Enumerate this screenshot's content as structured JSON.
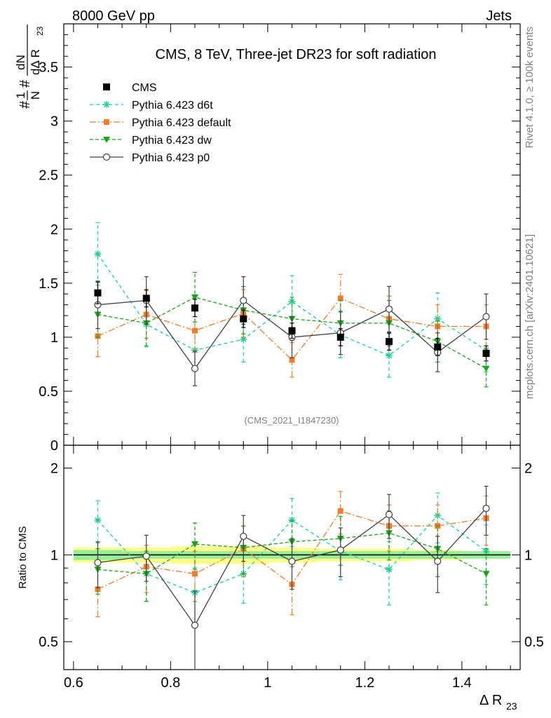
{
  "header": {
    "energy_label": "8000 GeV pp",
    "process_label": "Jets"
  },
  "side_labels": {
    "rivet": "Rivet 4.1.0, ≥ 100k events",
    "mcplots": "mcplots.cern.ch [arXiv:2401.10621]"
  },
  "analysis_tag": "(CMS_2021_I1847230)",
  "ratio_ylabel": "Ratio to CMS",
  "colors": {
    "CMS": "#000000",
    "Pythia 6.423 d6t": "#1fce9a",
    "Pythia 6.423 default": "#f37b2a",
    "Pythia 6.423 dw": "#1aa51a",
    "Pythia 6.423 p0": "#404040",
    "band_inner": "#99ee99",
    "band_outer": "#ffff88"
  },
  "chart_data": [
    {
      "type": "line",
      "panel": "main",
      "title": "CMS, 8 TeV, Three-jet DR23 for soft radiation",
      "ylabel": "#frac{1}{N} #frac{dN}{d#Delta R_{23}}",
      "xlabel": "",
      "xlim": [
        0.58,
        1.52
      ],
      "ylim": [
        0,
        3.9
      ],
      "yticks": [
        "0",
        "0.5",
        "1",
        "1.5",
        "2",
        "2.5",
        "3",
        "3.5"
      ],
      "x": [
        0.65,
        0.75,
        0.85,
        0.95,
        1.05,
        1.15,
        1.25,
        1.35,
        1.45
      ],
      "series": [
        {
          "name": "CMS",
          "values": [
            1.41,
            1.36,
            1.27,
            1.17,
            1.06,
            1.0,
            0.96,
            0.91,
            0.85
          ],
          "errors": [
            0.1,
            0.08,
            0.08,
            0.08,
            0.07,
            0.08,
            0.08,
            0.08,
            0.07
          ]
        },
        {
          "name": "Pythia 6.423 d6t",
          "values": [
            1.77,
            1.12,
            0.88,
            0.98,
            1.33,
            1.02,
            0.83,
            1.17,
            0.88
          ],
          "errors": [
            0.29,
            0.21,
            0.18,
            0.21,
            0.24,
            0.21,
            0.2,
            0.24,
            0.2
          ]
        },
        {
          "name": "Pythia 6.423 default",
          "values": [
            1.01,
            1.21,
            1.06,
            1.22,
            0.79,
            1.36,
            1.17,
            1.1,
            1.1
          ],
          "errors": [
            0.19,
            0.22,
            0.2,
            0.22,
            0.16,
            0.22,
            0.21,
            0.2,
            0.2
          ]
        },
        {
          "name": "Pythia 6.423 dw",
          "values": [
            1.21,
            1.13,
            1.37,
            1.25,
            1.17,
            1.13,
            1.13,
            0.96,
            0.71
          ],
          "errors": [
            0.21,
            0.21,
            0.23,
            0.22,
            0.2,
            0.21,
            0.21,
            0.19,
            0.17
          ]
        },
        {
          "name": "Pythia 6.423 p0",
          "values": [
            1.3,
            1.34,
            0.71,
            1.34,
            1.0,
            1.04,
            1.26,
            0.86,
            1.19
          ],
          "errors": [
            0.22,
            0.22,
            0.16,
            0.22,
            0.19,
            0.2,
            0.21,
            0.18,
            0.21
          ]
        }
      ],
      "legend": [
        "CMS",
        "Pythia 6.423 d6t",
        "Pythia 6.423 default",
        "Pythia 6.423 dw",
        "Pythia 6.423 p0"
      ],
      "legend_position": "top-left"
    },
    {
      "type": "line",
      "panel": "ratio",
      "title": "",
      "ylabel": "Ratio to CMS",
      "xlabel": "Δ R23",
      "xlim": [
        0.58,
        1.52
      ],
      "ylim": [
        0.4,
        2.4
      ],
      "yscale": "log",
      "yticks": [
        "0.5",
        "1",
        "2"
      ],
      "xticks": [
        "0.6",
        "0.8",
        "1",
        "1.2",
        "1.4"
      ],
      "x": [
        0.65,
        0.75,
        0.85,
        0.95,
        1.05,
        1.15,
        1.25,
        1.35,
        1.45
      ],
      "reference_band": {
        "inner": [
          0.04,
          0.03,
          0.03,
          0.03,
          0.03,
          0.03,
          0.03,
          0.03,
          0.03
        ],
        "outer": [
          0.06,
          0.06,
          0.07,
          0.07,
          0.06,
          0.05,
          0.05,
          0.04,
          0.03
        ]
      },
      "series": [
        {
          "name": "Pythia 6.423 d6t",
          "values": [
            1.32,
            0.86,
            0.74,
            0.86,
            1.32,
            1.03,
            0.89,
            1.37,
            1.03
          ],
          "errors": [
            0.22,
            0.17,
            0.16,
            0.18,
            0.25,
            0.21,
            0.22,
            0.27,
            0.24
          ]
        },
        {
          "name": "Pythia 6.423 default",
          "values": [
            0.76,
            0.91,
            0.86,
            1.05,
            0.79,
            1.42,
            1.26,
            1.26,
            1.34
          ],
          "errors": [
            0.15,
            0.17,
            0.17,
            0.21,
            0.17,
            0.24,
            0.23,
            0.23,
            0.26
          ]
        },
        {
          "name": "Pythia 6.423 dw",
          "values": [
            0.89,
            0.86,
            1.09,
            1.06,
            1.11,
            1.14,
            1.19,
            1.05,
            0.86
          ],
          "errors": [
            0.16,
            0.17,
            0.2,
            0.2,
            0.2,
            0.22,
            0.23,
            0.21,
            0.19
          ]
        },
        {
          "name": "Pythia 6.423 p0",
          "values": [
            0.94,
            0.99,
            0.57,
            1.16,
            0.95,
            1.04,
            1.38,
            0.95,
            1.45
          ],
          "errors": [
            0.17,
            0.18,
            0.18,
            0.21,
            0.19,
            0.2,
            0.24,
            0.21,
            0.28
          ]
        }
      ]
    }
  ]
}
